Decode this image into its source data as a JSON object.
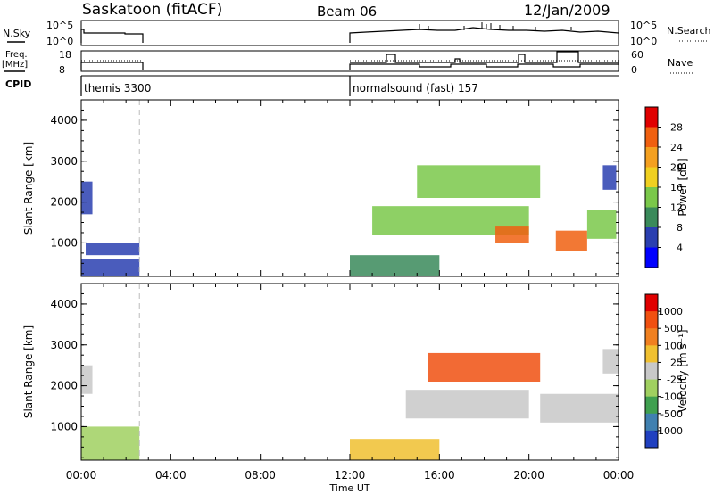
{
  "header": {
    "station": "Saskatoon (fitACF)",
    "beam": "Beam 06",
    "date": "12/Jan/2009"
  },
  "status_panels": {
    "nsky_label": "N.Sky",
    "nsky_ticks": [
      "10^5",
      "10^0"
    ],
    "nsearch_label": "N.Search",
    "nsearch_ticks": [
      "10^5",
      "10^0"
    ],
    "freq_label_1": "Freq.",
    "freq_label_2": "[MHz]",
    "freq_ticks": [
      "18",
      "8"
    ],
    "nave_label": "Nave",
    "nave_ticks": [
      "60",
      "0"
    ],
    "cpid_label": "CPID",
    "cpid_segments": [
      {
        "label": "themis 3300",
        "start_h": 0.0,
        "end_h": 2.6
      },
      {
        "label": "normalsound (fast) 157",
        "start_h": 12.0,
        "end_h": 24.0
      }
    ]
  },
  "chart_data": [
    {
      "type": "heatmap",
      "name": "power-panel",
      "ylabel": "Slant Range [km]",
      "xlim": [
        0,
        24
      ],
      "ylim": [
        180,
        4500
      ],
      "yticks": [
        "1000",
        "2000",
        "3000",
        "4000"
      ],
      "colorbar_label": "Power [dB]",
      "colorbar_ticks": [
        "4",
        "8",
        "12",
        "16",
        "20",
        "24",
        "28"
      ],
      "colorbar_colors": [
        "#0000ff",
        "#2a3fb0",
        "#3a8a5a",
        "#7ac84a",
        "#f0d020",
        "#f4a020",
        "#f06010",
        "#e00000"
      ],
      "regions": [
        {
          "t0": 0.0,
          "t1": 0.5,
          "r0": 1700,
          "r1": 2500,
          "level": 1
        },
        {
          "t0": 0.0,
          "t1": 2.6,
          "r0": 180,
          "r1": 600,
          "level": 1
        },
        {
          "t0": 0.2,
          "t1": 2.6,
          "r0": 700,
          "r1": 1000,
          "level": 1
        },
        {
          "t0": 12.0,
          "t1": 16.0,
          "r0": 180,
          "r1": 700,
          "level": 2
        },
        {
          "t0": 13.0,
          "t1": 20.0,
          "r0": 1200,
          "r1": 1900,
          "level": 3
        },
        {
          "t0": 15.0,
          "t1": 20.5,
          "r0": 2100,
          "r1": 2900,
          "level": 3
        },
        {
          "t0": 18.5,
          "t1": 20.0,
          "r0": 1000,
          "r1": 1400,
          "level": 6
        },
        {
          "t0": 21.2,
          "t1": 22.6,
          "r0": 800,
          "r1": 1300,
          "level": 6
        },
        {
          "t0": 22.6,
          "t1": 23.9,
          "r0": 1100,
          "r1": 1800,
          "level": 3
        },
        {
          "t0": 23.3,
          "t1": 23.9,
          "r0": 2300,
          "r1": 2900,
          "level": 1
        }
      ]
    },
    {
      "type": "heatmap",
      "name": "velocity-panel",
      "xlabel": "Time UT",
      "ylabel": "Slant Range [km]",
      "xlim": [
        0,
        24
      ],
      "ylim": [
        180,
        4500
      ],
      "xticks": [
        "00:00",
        "04:00",
        "08:00",
        "12:00",
        "16:00",
        "20:00",
        "00:00"
      ],
      "yticks": [
        "1000",
        "2000",
        "3000",
        "4000"
      ],
      "colorbar_label": "Velocity [m s⁻¹]",
      "colorbar_ticks": [
        "1000",
        "500",
        "100",
        "25",
        "-25",
        "-100",
        "-500",
        "-1000"
      ],
      "colorbar_colors": [
        "#2040c0",
        "#4080b0",
        "#40a050",
        "#a0d060",
        "#c8c8c8",
        "#f0c030",
        "#f08020",
        "#f05010",
        "#e00000"
      ],
      "regions": [
        {
          "t0": 0.0,
          "t1": 0.5,
          "r0": 1800,
          "r1": 2500,
          "level": 4
        },
        {
          "t0": 0.0,
          "t1": 2.6,
          "r0": 180,
          "r1": 1000,
          "level": 3
        },
        {
          "t0": 12.0,
          "t1": 16.0,
          "r0": 180,
          "r1": 700,
          "level": 5
        },
        {
          "t0": 15.5,
          "t1": 20.5,
          "r0": 2100,
          "r1": 2800,
          "level": 7
        },
        {
          "t0": 14.5,
          "t1": 20.0,
          "r0": 1200,
          "r1": 1900,
          "level": 4
        },
        {
          "t0": 20.5,
          "t1": 24.0,
          "r0": 1100,
          "r1": 1800,
          "level": 4
        },
        {
          "t0": 23.3,
          "t1": 24.0,
          "r0": 2300,
          "r1": 2900,
          "level": 4
        }
      ]
    }
  ]
}
